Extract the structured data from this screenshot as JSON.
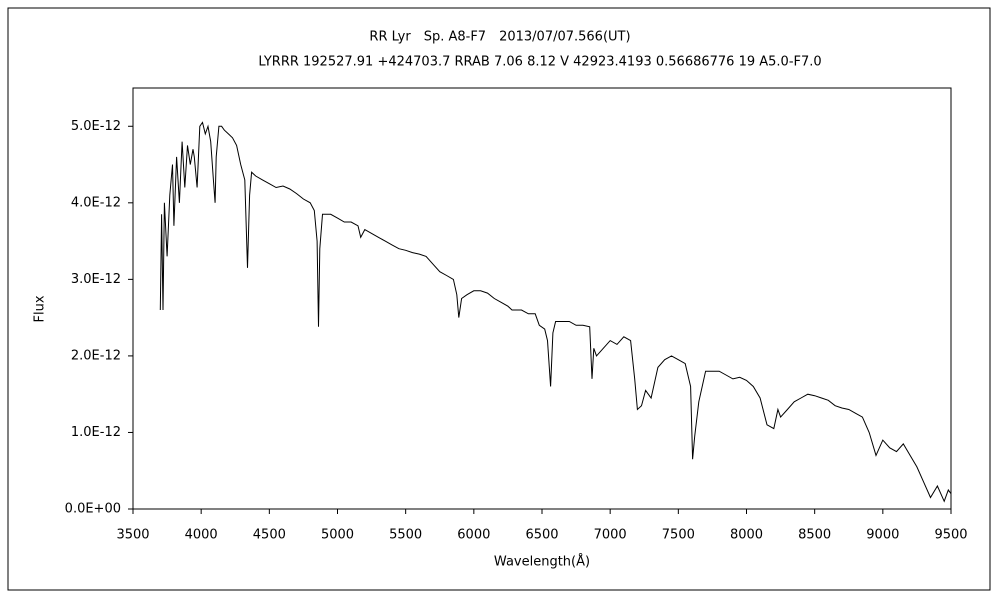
{
  "chart_data": {
    "type": "line",
    "title": "RR Lyr　Sp. A8-F7　2013/07/07.566(UT)",
    "subtitle": "LYRRR 192527.91 +424703.7 RRAB 7.06 8.12 V 42923.4193 0.56686776 19 A5.0-F7.0",
    "x_label": "Wavelength(Å)",
    "y_label": "Flux",
    "xlim": [
      3500,
      9500
    ],
    "xticks": [
      3500,
      4000,
      4500,
      5000,
      5500,
      6000,
      6500,
      7000,
      7500,
      8000,
      8500,
      9000,
      9500
    ],
    "ylim": [
      0,
      5.5e-12
    ],
    "yticks": [
      {
        "value": 0,
        "label": "0.0E+00"
      },
      {
        "value": 1e-12,
        "label": "1.0E-12"
      },
      {
        "value": 2e-12,
        "label": "2.0E-12"
      },
      {
        "value": 3e-12,
        "label": "3.0E-12"
      },
      {
        "value": 4e-12,
        "label": "4.0E-12"
      },
      {
        "value": 5e-12,
        "label": "5.0E-12"
      }
    ],
    "grid": false,
    "color": "#000000",
    "x": [
      3700,
      3710,
      3720,
      3730,
      3750,
      3770,
      3790,
      3800,
      3820,
      3840,
      3860,
      3880,
      3900,
      3920,
      3940,
      3950,
      3970,
      3990,
      4010,
      4030,
      4050,
      4070,
      4090,
      4102,
      4110,
      4130,
      4150,
      4170,
      4200,
      4230,
      4260,
      4290,
      4320,
      4340,
      4355,
      4370,
      4400,
      4450,
      4500,
      4550,
      4600,
      4650,
      4700,
      4750,
      4800,
      4830,
      4850,
      4861,
      4870,
      4890,
      4950,
      5000,
      5050,
      5100,
      5150,
      5170,
      5200,
      5250,
      5300,
      5350,
      5400,
      5450,
      5500,
      5550,
      5600,
      5650,
      5700,
      5750,
      5800,
      5850,
      5875,
      5890,
      5910,
      5950,
      6000,
      6050,
      6100,
      6150,
      6200,
      6250,
      6280,
      6300,
      6350,
      6400,
      6450,
      6480,
      6520,
      6540,
      6563,
      6580,
      6600,
      6650,
      6700,
      6750,
      6800,
      6850,
      6867,
      6880,
      6900,
      6950,
      7000,
      7050,
      7100,
      7150,
      7180,
      7200,
      7230,
      7260,
      7300,
      7350,
      7400,
      7450,
      7500,
      7550,
      7590,
      7605,
      7620,
      7650,
      7700,
      7750,
      7800,
      7850,
      7900,
      7950,
      8000,
      8050,
      8100,
      8150,
      8200,
      8230,
      8250,
      8300,
      8350,
      8400,
      8450,
      8500,
      8550,
      8600,
      8650,
      8700,
      8750,
      8800,
      8850,
      8900,
      8950,
      9000,
      9050,
      9100,
      9150,
      9200,
      9250,
      9300,
      9350,
      9400,
      9450,
      9480,
      9500
    ],
    "values": [
      2.6e-12,
      3.85e-12,
      2.6e-12,
      4e-12,
      3.3e-12,
      4.1e-12,
      4.5e-12,
      3.7e-12,
      4.6e-12,
      4e-12,
      4.8e-12,
      4.2e-12,
      4.75e-12,
      4.5e-12,
      4.7e-12,
      4.6e-12,
      4.2e-12,
      5e-12,
      5.05e-12,
      4.9e-12,
      5e-12,
      4.8e-12,
      4.3e-12,
      4e-12,
      4.6e-12,
      5e-12,
      5e-12,
      4.95e-12,
      4.9e-12,
      4.85e-12,
      4.75e-12,
      4.5e-12,
      4.3e-12,
      3.15e-12,
      4.1e-12,
      4.4e-12,
      4.35e-12,
      4.3e-12,
      4.25e-12,
      4.2e-12,
      4.22e-12,
      4.18e-12,
      4.12e-12,
      4.05e-12,
      4e-12,
      3.9e-12,
      3.5e-12,
      2.38e-12,
      3.4e-12,
      3.85e-12,
      3.85e-12,
      3.8e-12,
      3.75e-12,
      3.75e-12,
      3.7e-12,
      3.55e-12,
      3.65e-12,
      3.6e-12,
      3.55e-12,
      3.5e-12,
      3.45e-12,
      3.4e-12,
      3.38e-12,
      3.35e-12,
      3.33e-12,
      3.3e-12,
      3.2e-12,
      3.1e-12,
      3.05e-12,
      3e-12,
      2.8e-12,
      2.5e-12,
      2.75e-12,
      2.8e-12,
      2.85e-12,
      2.85e-12,
      2.82e-12,
      2.75e-12,
      2.7e-12,
      2.65e-12,
      2.6e-12,
      2.6e-12,
      2.6e-12,
      2.55e-12,
      2.55e-12,
      2.4e-12,
      2.35e-12,
      2.2e-12,
      1.6e-12,
      2.3e-12,
      2.45e-12,
      2.45e-12,
      2.45e-12,
      2.4e-12,
      2.4e-12,
      2.38e-12,
      1.7e-12,
      2.1e-12,
      2e-12,
      2.1e-12,
      2.2e-12,
      2.15e-12,
      2.25e-12,
      2.2e-12,
      1.7e-12,
      1.3e-12,
      1.35e-12,
      1.55e-12,
      1.45e-12,
      1.85e-12,
      1.95e-12,
      2e-12,
      1.95e-12,
      1.9e-12,
      1.6e-12,
      6.5e-13,
      9.5e-13,
      1.4e-12,
      1.8e-12,
      1.8e-12,
      1.8e-12,
      1.75e-12,
      1.7e-12,
      1.72e-12,
      1.68e-12,
      1.6e-12,
      1.45e-12,
      1.1e-12,
      1.05e-12,
      1.3e-12,
      1.2e-12,
      1.3e-12,
      1.4e-12,
      1.45e-12,
      1.5e-12,
      1.48e-12,
      1.45e-12,
      1.42e-12,
      1.35e-12,
      1.32e-12,
      1.3e-12,
      1.25e-12,
      1.2e-12,
      1e-12,
      7e-13,
      9e-13,
      8e-13,
      7.5e-13,
      8.5e-13,
      7e-13,
      5.5e-13,
      3.5e-13,
      1.5e-13,
      3e-13,
      1e-13,
      2.5e-13,
      2e-13
    ]
  }
}
